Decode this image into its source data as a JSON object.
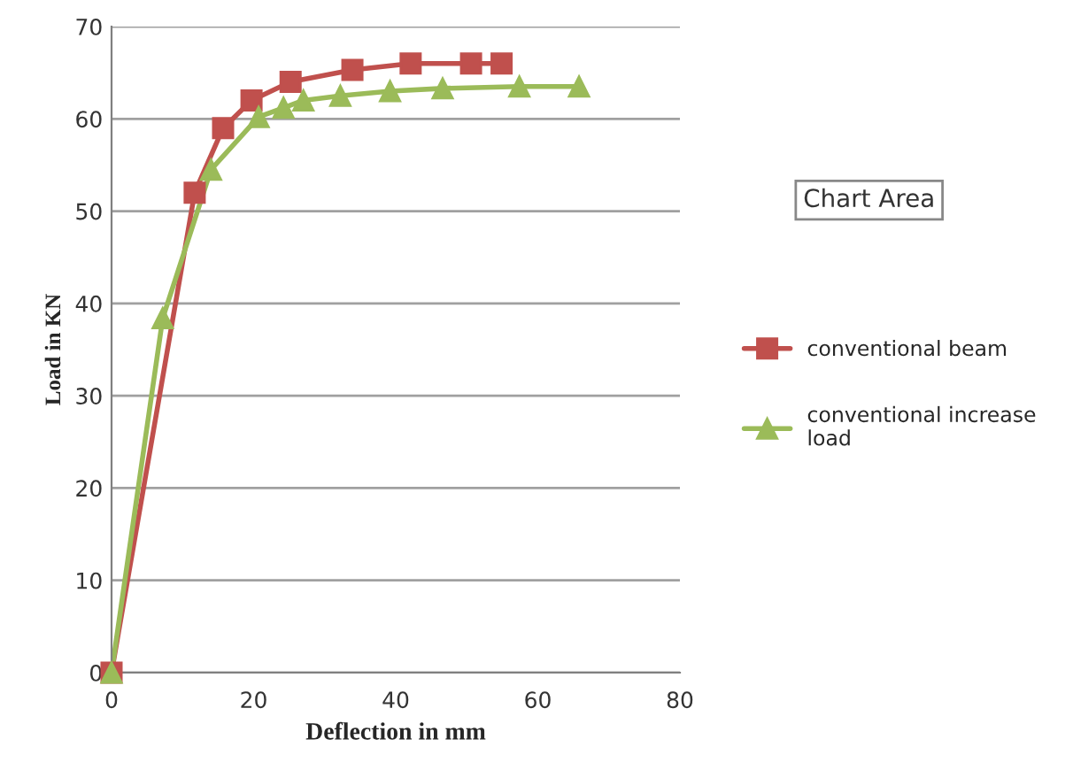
{
  "chart_data": {
    "type": "line",
    "xlabel": "Deflection in mm",
    "ylabel": "Load in KN",
    "xlim": [
      0,
      80
    ],
    "xticks": [
      0,
      20,
      40,
      60,
      80
    ],
    "ylim": [
      0,
      70
    ],
    "yticks": [
      0,
      10,
      20,
      30,
      40,
      50,
      60,
      70
    ],
    "grid": "y",
    "legend": "right",
    "line_style": "solid",
    "annotations": [
      "Chart Area"
    ],
    "series": [
      {
        "name": "conventional beam",
        "color": "#c0504d",
        "marker": "square",
        "x": [
          0,
          11.7,
          15.7,
          19.7,
          25.2,
          33.9,
          42.1,
          50.6,
          54.9
        ],
        "values": [
          0,
          52,
          59,
          62,
          64,
          65.3,
          66,
          66,
          66
        ]
      },
      {
        "name": "conventional increase load",
        "color": "#9bbb59",
        "marker": "triangle",
        "x": [
          0,
          7.2,
          14,
          20.7,
          24.2,
          27,
          32.2,
          39.2,
          46.6,
          57.4,
          65.8
        ],
        "values": [
          0,
          38.4,
          54.5,
          60.2,
          61.2,
          62,
          62.5,
          63,
          63.3,
          63.5,
          63.5
        ]
      }
    ]
  }
}
